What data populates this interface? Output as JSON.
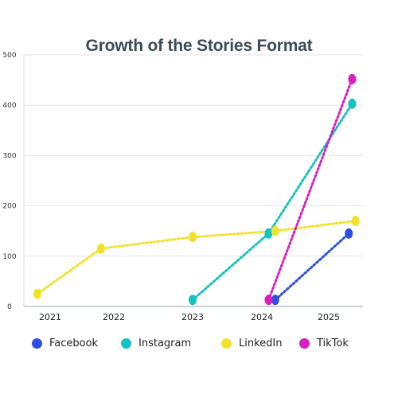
{
  "chart_data": {
    "type": "line",
    "title": "Growth of the Stories Format",
    "xlabel": "",
    "ylabel": "",
    "categories": [
      "2021",
      "2022",
      "2023",
      "2024",
      "2025"
    ],
    "ylim": [
      0,
      500
    ],
    "yticks": [
      0,
      100,
      200,
      300,
      400,
      500
    ],
    "grid": true,
    "legend_position": "bottom",
    "series": [
      {
        "name": "Facebook",
        "color": "#2d4ee0",
        "points": [
          [
            2024.2,
            13
          ],
          [
            2025.3,
            145
          ]
        ]
      },
      {
        "name": "Instagram",
        "color": "#14c2bf",
        "points": [
          [
            2023.0,
            13
          ],
          [
            2024.1,
            145
          ],
          [
            2025.35,
            403
          ]
        ]
      },
      {
        "name": "LinkedIn",
        "color": "#f2e12c",
        "points": [
          [
            2020.8,
            25
          ],
          [
            2021.8,
            115
          ],
          [
            2023.0,
            138
          ],
          [
            2024.2,
            150
          ],
          [
            2025.4,
            170
          ]
        ]
      },
      {
        "name": "TikTok",
        "color": "#d91fbd",
        "points": [
          [
            2024.1,
            13
          ],
          [
            2025.35,
            452
          ]
        ]
      }
    ]
  }
}
